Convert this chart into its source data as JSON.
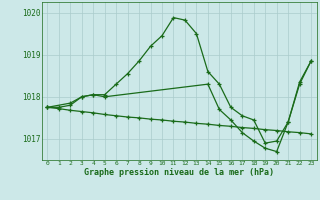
{
  "title": "Graphe pression niveau de la mer (hPa)",
  "background_color": "#cce8e8",
  "line_color": "#1a6b1a",
  "grid_color": "#aacccc",
  "xlim": [
    -0.5,
    23.5
  ],
  "ylim": [
    1016.5,
    1020.25
  ],
  "yticks": [
    1017,
    1018,
    1019,
    1020
  ],
  "xtick_labels": [
    "0",
    "1",
    "2",
    "3",
    "4",
    "5",
    "6",
    "7",
    "8",
    "9",
    "10",
    "11",
    "12",
    "13",
    "14",
    "15",
    "16",
    "17",
    "18",
    "19",
    "20",
    "21",
    "22",
    "23"
  ],
  "line1_x": [
    0,
    1,
    2,
    3,
    4,
    5,
    6,
    7,
    8,
    9,
    10,
    11,
    12,
    13,
    14,
    15,
    16,
    17,
    18,
    19,
    20,
    21,
    22,
    23
  ],
  "line1_y": [
    1017.75,
    1017.75,
    1017.8,
    1018.0,
    1018.05,
    1018.05,
    1018.3,
    1018.55,
    1018.85,
    1019.2,
    1019.45,
    1019.88,
    1019.82,
    1019.5,
    1018.6,
    1018.3,
    1017.75,
    1017.55,
    1017.45,
    1016.9,
    1016.95,
    1017.4,
    1018.35,
    1018.85
  ],
  "line2_x": [
    0,
    1,
    2,
    3,
    4,
    5,
    6,
    7,
    8,
    9,
    10,
    11,
    12,
    13,
    14,
    15,
    16,
    17,
    18,
    19,
    20,
    21,
    22,
    23
  ],
  "line2_y": [
    1017.75,
    1017.72,
    1017.68,
    1017.65,
    1017.62,
    1017.58,
    1017.55,
    1017.52,
    1017.5,
    1017.47,
    1017.45,
    1017.42,
    1017.4,
    1017.37,
    1017.35,
    1017.32,
    1017.3,
    1017.27,
    1017.25,
    1017.22,
    1017.2,
    1017.17,
    1017.15,
    1017.12
  ],
  "line3_x": [
    0,
    2,
    3,
    4,
    5,
    14,
    15,
    16,
    17,
    18,
    19,
    20,
    21,
    22,
    23
  ],
  "line3_y": [
    1017.75,
    1017.85,
    1018.0,
    1018.05,
    1018.0,
    1018.3,
    1017.7,
    1017.45,
    1017.15,
    1016.95,
    1016.78,
    1016.7,
    1017.4,
    1018.3,
    1018.85
  ]
}
